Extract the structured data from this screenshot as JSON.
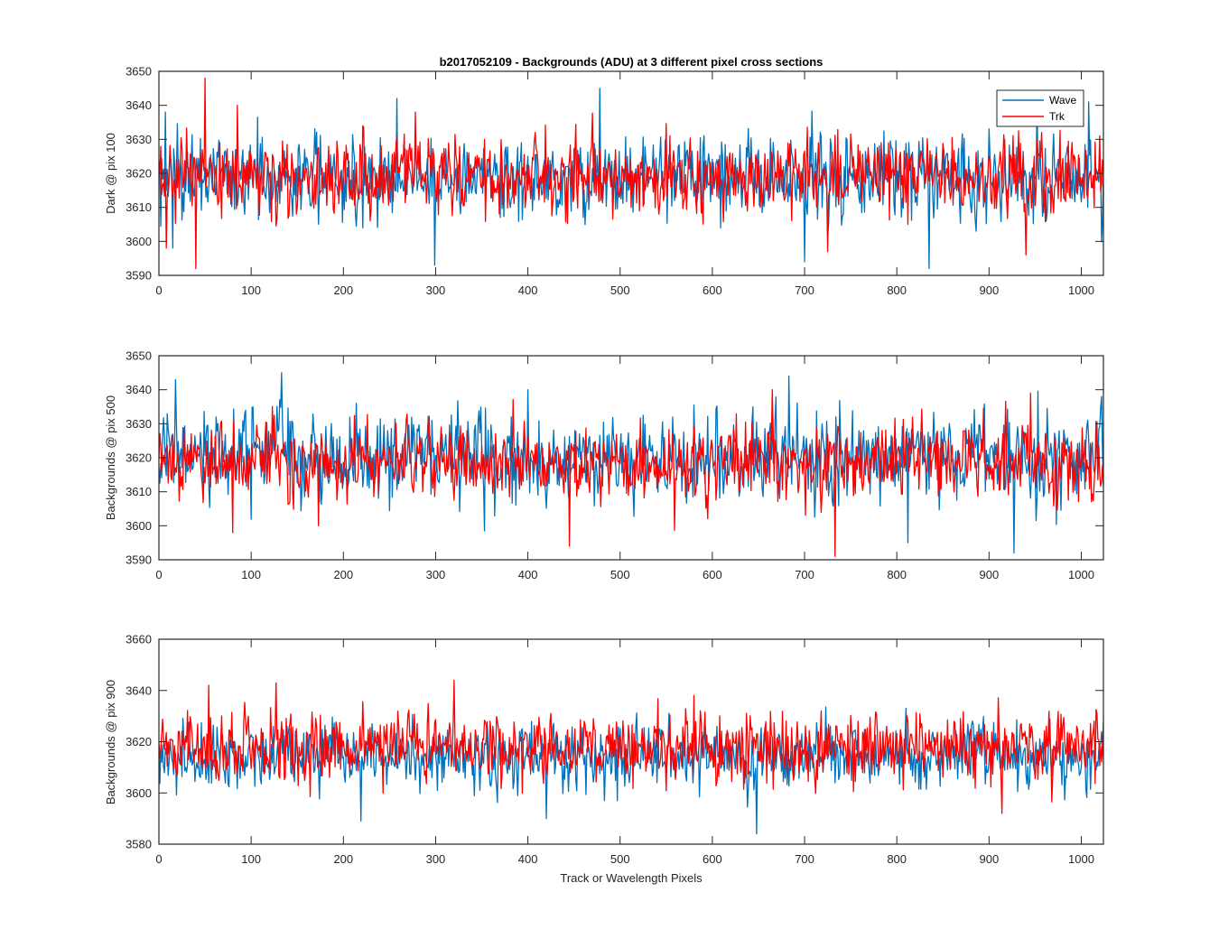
{
  "figure": {
    "title": "b2017052109 - Backgrounds (ADU) at 3 different pixel cross sections",
    "xlabel": "Track or Wavelength Pixels"
  },
  "colors": {
    "wave": "#0072BD",
    "trk": "#FF0000",
    "axes": "#262626"
  },
  "legend": {
    "entries": [
      "Wave",
      "Trk"
    ],
    "placement": "top-right",
    "panel": 0
  },
  "chart_data": [
    {
      "type": "line",
      "ylabel": "Dark @ pix 100",
      "xlim": [
        0,
        1024
      ],
      "ylim": [
        3590,
        3650
      ],
      "xticks": [
        0,
        100,
        200,
        300,
        400,
        500,
        600,
        700,
        800,
        900,
        1000
      ],
      "yticks": [
        3590,
        3600,
        3610,
        3620,
        3630,
        3640,
        3650
      ],
      "series": [
        {
          "name": "Wave",
          "color": "#0072BD",
          "mean": 3619,
          "sd": 6,
          "extremes": [
            [
              7,
              3638
            ],
            [
              15,
              3598
            ],
            [
              258,
              3642
            ],
            [
              299,
              3593
            ],
            [
              478,
              3645
            ],
            [
              700,
              3594
            ],
            [
              835,
              3592
            ],
            [
              952,
              3642
            ],
            [
              1008,
              3641
            ]
          ]
        },
        {
          "name": "Trk",
          "color": "#FF0000",
          "mean": 3619,
          "sd": 5.5,
          "extremes": [
            [
              8,
              3598
            ],
            [
              40,
              3592
            ],
            [
              50,
              3648
            ],
            [
              85,
              3640
            ],
            [
              278,
              3638
            ],
            [
              353,
              3630
            ],
            [
              725,
              3597
            ],
            [
              940,
              3596
            ],
            [
              1020,
              3631
            ]
          ]
        }
      ]
    },
    {
      "type": "line",
      "ylabel": "Backgrounds @ pix 500",
      "xlim": [
        0,
        1024
      ],
      "ylim": [
        3590,
        3650
      ],
      "xticks": [
        0,
        100,
        200,
        300,
        400,
        500,
        600,
        700,
        800,
        900,
        1000
      ],
      "yticks": [
        3590,
        3600,
        3610,
        3620,
        3630,
        3640,
        3650
      ],
      "series": [
        {
          "name": "Wave",
          "color": "#0072BD",
          "mean": 3620,
          "sd": 6.5,
          "extremes": [
            [
              18,
              3643
            ],
            [
              133,
              3645
            ],
            [
              400,
              3640
            ],
            [
              683,
              3644
            ],
            [
              812,
              3595
            ],
            [
              927,
              3592
            ],
            [
              1022,
              3638
            ]
          ]
        },
        {
          "name": "Trk",
          "color": "#FF0000",
          "mean": 3619,
          "sd": 5.5,
          "extremes": [
            [
              80,
              3598
            ],
            [
              173,
              3600
            ],
            [
              445,
              3594
            ],
            [
              665,
              3640
            ],
            [
              733,
              3591
            ],
            [
              945,
              3639
            ]
          ]
        }
      ]
    },
    {
      "type": "line",
      "ylabel": "Backgrounds @ pix 900",
      "xlim": [
        0,
        1024
      ],
      "ylim": [
        3580,
        3660
      ],
      "xticks": [
        0,
        100,
        200,
        300,
        400,
        500,
        600,
        700,
        800,
        900,
        1000
      ],
      "yticks": [
        3580,
        3600,
        3620,
        3640,
        3660
      ],
      "series": [
        {
          "name": "Wave",
          "color": "#0072BD",
          "mean": 3614,
          "sd": 6.5,
          "extremes": [
            [
              219,
              3589
            ],
            [
              420,
              3590
            ],
            [
              648,
              3584
            ],
            [
              790,
              3622
            ]
          ]
        },
        {
          "name": "Trk",
          "color": "#FF0000",
          "mean": 3618,
          "sd": 6.5,
          "extremes": [
            [
              54,
              3642
            ],
            [
              127,
              3643
            ],
            [
              320,
              3644
            ],
            [
              580,
              3638
            ],
            [
              914,
              3592
            ],
            [
              1017,
              3631
            ]
          ]
        }
      ]
    }
  ]
}
